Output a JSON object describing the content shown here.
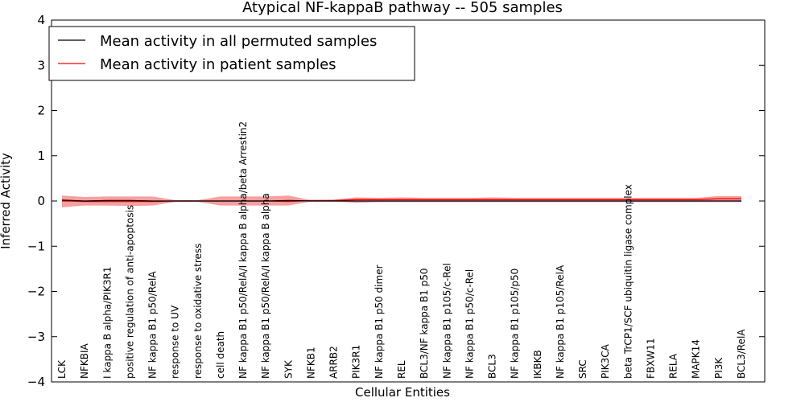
{
  "chart_data": {
    "type": "line",
    "title": "Atypical NF-kappaB pathway -- 505 samples",
    "xlabel": "Cellular Entities",
    "ylabel": "Inferred Activity",
    "ylim": [
      -4,
      4
    ],
    "yticks": [
      "4",
      "3",
      "2",
      "1",
      "0",
      "−1",
      "−2",
      "−3",
      "−4"
    ],
    "ytick_values": [
      4,
      3,
      2,
      1,
      0,
      -1,
      -2,
      -3,
      -4
    ],
    "legend": {
      "placement": "top-left",
      "entries": [
        {
          "label": "Mean activity in all permuted samples",
          "color": "#000000"
        },
        {
          "label": "Mean activity in patient samples",
          "color": "#ff0000"
        }
      ]
    },
    "categories": [
      "LCK",
      "NFKBIA",
      "I kappa B alpha/PIK3R1",
      "positive regulation of anti-apoptosis",
      "NF kappa B1 p50/RelA",
      "response to UV",
      "response to oxidative stress",
      "cell death",
      "NF kappa B1 p50/RelA/I kappa B alpha/beta Arrestin2",
      "NF kappa B1 p50/RelA/I kappa B alpha",
      "SYK",
      "NFKB1",
      "ARRB2",
      "PIK3R1",
      "NF kappa B1 p50 dimer",
      "REL",
      "BCL3/NF kappa B1 p50",
      "NF kappa B1 p105/c-Rel",
      "NF kappa B1 p50/c-Rel",
      "BCL3",
      "NF kappa B1 p105/p50",
      "IKBKB",
      "NF kappa B1 p105/RelA",
      "SRC",
      "PIK3CA",
      "beta TrCP1/SCF ubiquitin ligase complex",
      "FBXW11",
      "RELA",
      "MAPK14",
      "PI3K",
      "BCL3/RelA"
    ],
    "series": [
      {
        "name": "Mean activity in all permuted samples",
        "color": "#000000",
        "values": [
          0.02,
          0.0,
          0.01,
          0.01,
          0.0,
          0.0,
          0.0,
          0.0,
          0.0,
          0.0,
          0.01,
          0.0,
          0.0,
          0.0,
          0.0,
          0.0,
          0.0,
          0.0,
          0.0,
          0.0,
          0.0,
          0.0,
          0.0,
          0.0,
          0.0,
          0.0,
          0.0,
          0.0,
          0.0,
          0.0,
          0.0
        ],
        "band_upper": [
          0.02,
          0.01,
          0.02,
          0.02,
          0.01,
          0.01,
          0.01,
          0.01,
          0.01,
          0.01,
          0.02,
          0.01,
          0.01,
          0.01,
          0.01,
          0.01,
          0.01,
          0.01,
          0.01,
          0.01,
          0.01,
          0.01,
          0.01,
          0.01,
          0.01,
          0.01,
          0.01,
          0.01,
          0.01,
          0.01,
          0.01
        ],
        "band_lower": [
          -0.02,
          -0.03,
          -0.03,
          -0.03,
          -0.03,
          -0.02,
          -0.02,
          -0.03,
          -0.03,
          -0.03,
          -0.03,
          -0.02,
          -0.02,
          -0.03,
          -0.03,
          -0.03,
          -0.03,
          -0.03,
          -0.03,
          -0.03,
          -0.03,
          -0.03,
          -0.03,
          -0.03,
          -0.03,
          -0.03,
          -0.03,
          -0.03,
          -0.03,
          -0.03,
          -0.03
        ]
      },
      {
        "name": "Mean activity in patient samples",
        "color": "#ff0000",
        "values": [
          0.0,
          -0.01,
          -0.01,
          -0.01,
          -0.01,
          0.0,
          0.0,
          0.0,
          0.0,
          0.0,
          -0.01,
          0.01,
          0.01,
          0.03,
          0.03,
          0.03,
          0.03,
          0.03,
          0.03,
          0.03,
          0.03,
          0.03,
          0.03,
          0.03,
          0.03,
          0.03,
          0.03,
          0.03,
          0.03,
          0.05,
          0.05
        ],
        "band_upper": [
          0.12,
          0.09,
          0.1,
          0.1,
          0.1,
          0.02,
          0.02,
          0.1,
          0.1,
          0.1,
          0.12,
          0.02,
          0.03,
          0.08,
          0.07,
          0.08,
          0.07,
          0.07,
          0.07,
          0.08,
          0.07,
          0.07,
          0.07,
          0.07,
          0.07,
          0.07,
          0.07,
          0.07,
          0.07,
          0.11,
          0.11
        ],
        "band_lower": [
          -0.14,
          -0.1,
          -0.1,
          -0.11,
          -0.1,
          -0.02,
          -0.02,
          -0.1,
          -0.1,
          -0.1,
          -0.1,
          -0.01,
          -0.01,
          -0.04,
          -0.02,
          -0.02,
          -0.02,
          -0.02,
          -0.02,
          -0.02,
          -0.02,
          -0.02,
          -0.02,
          -0.02,
          -0.02,
          -0.02,
          -0.02,
          -0.02,
          -0.02,
          -0.02,
          -0.02
        ]
      }
    ]
  }
}
